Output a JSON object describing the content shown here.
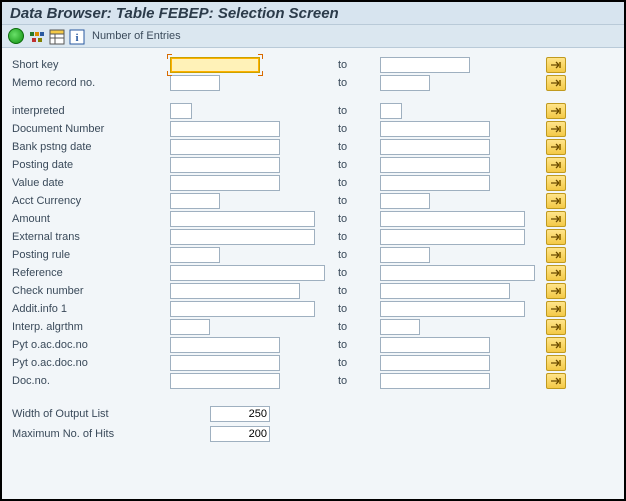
{
  "title": "Data Browser: Table FEBEP: Selection Screen",
  "toolbar": {
    "numEntries": "Number of Entries"
  },
  "labels": {
    "to": "to"
  },
  "fields": [
    {
      "label": "Short key",
      "fromW": 90,
      "toW": 90,
      "focus": true,
      "opt": true
    },
    {
      "label": "Memo record no.",
      "fromW": 50,
      "toW": 50,
      "opt": true
    },
    {
      "gap": true
    },
    {
      "label": "interpreted",
      "fromW": 22,
      "toW": 22,
      "opt": true
    },
    {
      "label": "Document Number",
      "fromW": 110,
      "toW": 110,
      "opt": true
    },
    {
      "label": "Bank pstng date",
      "fromW": 110,
      "toW": 110,
      "opt": true
    },
    {
      "label": "Posting date",
      "fromW": 110,
      "toW": 110,
      "opt": true
    },
    {
      "label": "Value date",
      "fromW": 110,
      "toW": 110,
      "opt": true
    },
    {
      "label": "Acct Currency",
      "fromW": 50,
      "toW": 50,
      "opt": true
    },
    {
      "label": "Amount",
      "fromW": 145,
      "toW": 145,
      "opt": true
    },
    {
      "label": "External trans",
      "fromW": 145,
      "toW": 145,
      "opt": true
    },
    {
      "label": "Posting rule",
      "fromW": 50,
      "toW": 50,
      "opt": true
    },
    {
      "label": "Reference",
      "fromW": 155,
      "toW": 155,
      "opt": true
    },
    {
      "label": "Check number",
      "fromW": 130,
      "toW": 130,
      "opt": true
    },
    {
      "label": "Addit.info 1",
      "fromW": 145,
      "toW": 145,
      "opt": true
    },
    {
      "label": "Interp. algrthm",
      "fromW": 40,
      "toW": 40,
      "opt": true
    },
    {
      "label": "Pyt o.ac.doc.no",
      "fromW": 110,
      "toW": 110,
      "opt": true
    },
    {
      "label": "Pyt o.ac.doc.no",
      "fromW": 110,
      "toW": 110,
      "opt": true
    },
    {
      "label": "Doc.no.",
      "fromW": 110,
      "toW": 110,
      "opt": true
    }
  ],
  "output": {
    "widthLabel": "Width of Output List",
    "widthValue": "250",
    "maxLabel": "Maximum No. of Hits",
    "maxValue": "200"
  }
}
